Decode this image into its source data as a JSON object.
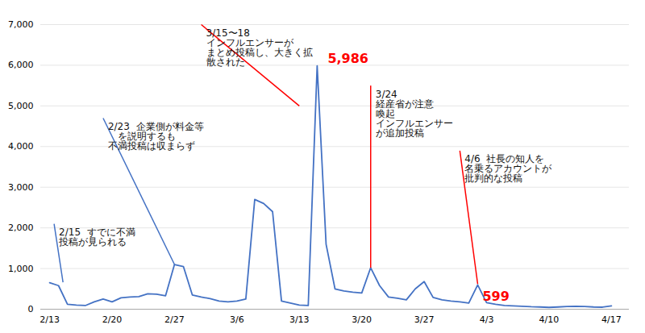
{
  "chart_data": {
    "type": "line",
    "x": [
      0,
      1,
      2,
      3,
      4,
      5,
      6,
      7,
      8,
      9,
      10,
      11,
      12,
      13,
      14,
      15,
      16,
      17,
      18,
      19,
      20,
      21,
      22,
      23,
      24,
      25,
      26,
      27,
      28,
      29,
      30,
      31,
      32,
      33,
      34,
      35,
      36,
      37,
      38,
      39,
      40,
      41,
      42,
      43,
      44,
      45,
      46,
      47,
      48,
      49,
      50,
      51,
      52,
      53,
      54,
      55,
      56,
      57,
      58,
      59,
      60,
      61,
      62,
      63
    ],
    "values": [
      650,
      580,
      120,
      100,
      90,
      180,
      250,
      180,
      280,
      300,
      310,
      380,
      370,
      330,
      1100,
      1050,
      350,
      300,
      260,
      200,
      180,
      200,
      250,
      2700,
      2600,
      2400,
      200,
      150,
      100,
      90,
      5986,
      1600,
      500,
      450,
      420,
      400,
      1020,
      580,
      300,
      270,
      230,
      500,
      680,
      290,
      230,
      200,
      180,
      150,
      599,
      160,
      120,
      90,
      80,
      70,
      60,
      55,
      45,
      55,
      65,
      70,
      65,
      55,
      50,
      80
    ],
    "color": "#4472C4",
    "background_color": "#FFFFFF",
    "xlim": [
      -1,
      65
    ],
    "xticks": [
      {
        "value": 0,
        "label": "2/13"
      },
      {
        "value": 7,
        "label": "2/20"
      },
      {
        "value": 14,
        "label": "2/27"
      },
      {
        "value": 21,
        "label": "3/6"
      },
      {
        "value": 28,
        "label": "3/13"
      },
      {
        "value": 35,
        "label": "3/20"
      },
      {
        "value": 42,
        "label": "3/27"
      },
      {
        "value": 49,
        "label": "4/3"
      },
      {
        "value": 56,
        "label": "4/10"
      },
      {
        "value": 63,
        "label": "4/17"
      }
    ],
    "ylim": [
      0,
      7000
    ],
    "yticks": [
      0,
      {
        "value": 1000,
        "label": "1,000"
      },
      {
        "value": 2000,
        "label": "2,000"
      },
      {
        "value": 3000,
        "label": "3,000"
      },
      {
        "value": 4000,
        "label": "4,000"
      },
      {
        "value": 5000,
        "label": "5,000"
      },
      {
        "value": 6000,
        "label": "6,000"
      },
      {
        "value": 7000,
        "label": "7,000"
      }
    ],
    "grid": true,
    "point_labels": [
      {
        "x": 30,
        "y": 5986,
        "label": "5,986",
        "color": "#FF0000",
        "position": "above"
      },
      {
        "x": 48,
        "y": 599,
        "label": "599",
        "color": "#FF0000",
        "position": "below"
      }
    ],
    "annotations": [
      {
        "text": "2/15  すでに不満\n投稿が見られる",
        "x": 1.5,
        "y": 660,
        "text_x": 0.5,
        "text_y": 2100,
        "color": "#4472C4"
      },
      {
        "text": "2/23  企業側が料金等\n　を説明するも\n不満投稿は収まらず",
        "x": 14,
        "y": 1100,
        "text_x": 6,
        "text_y": 4700,
        "color": "#4472C4"
      },
      {
        "text": "3/15〜18\nインフルエンサーが\nまとめ投稿し、大きく拡\n散された",
        "x": 28,
        "y": 5000,
        "text_x": 17,
        "text_y": 7000,
        "color": "#FF0000"
      },
      {
        "text": "3/24\n経産省が注意\n喚起\nインフルエンサー\nが追加投稿",
        "x": 36,
        "y": 1020,
        "text_x": 36,
        "text_y": 5500,
        "color": "#FF0000"
      },
      {
        "text": "4/6  社長の知人を\n名乗るアカウントが\n批判的な投稿",
        "x": 48,
        "y": 620,
        "text_x": 46,
        "text_y": 3900,
        "color": "#FF0000"
      }
    ]
  }
}
